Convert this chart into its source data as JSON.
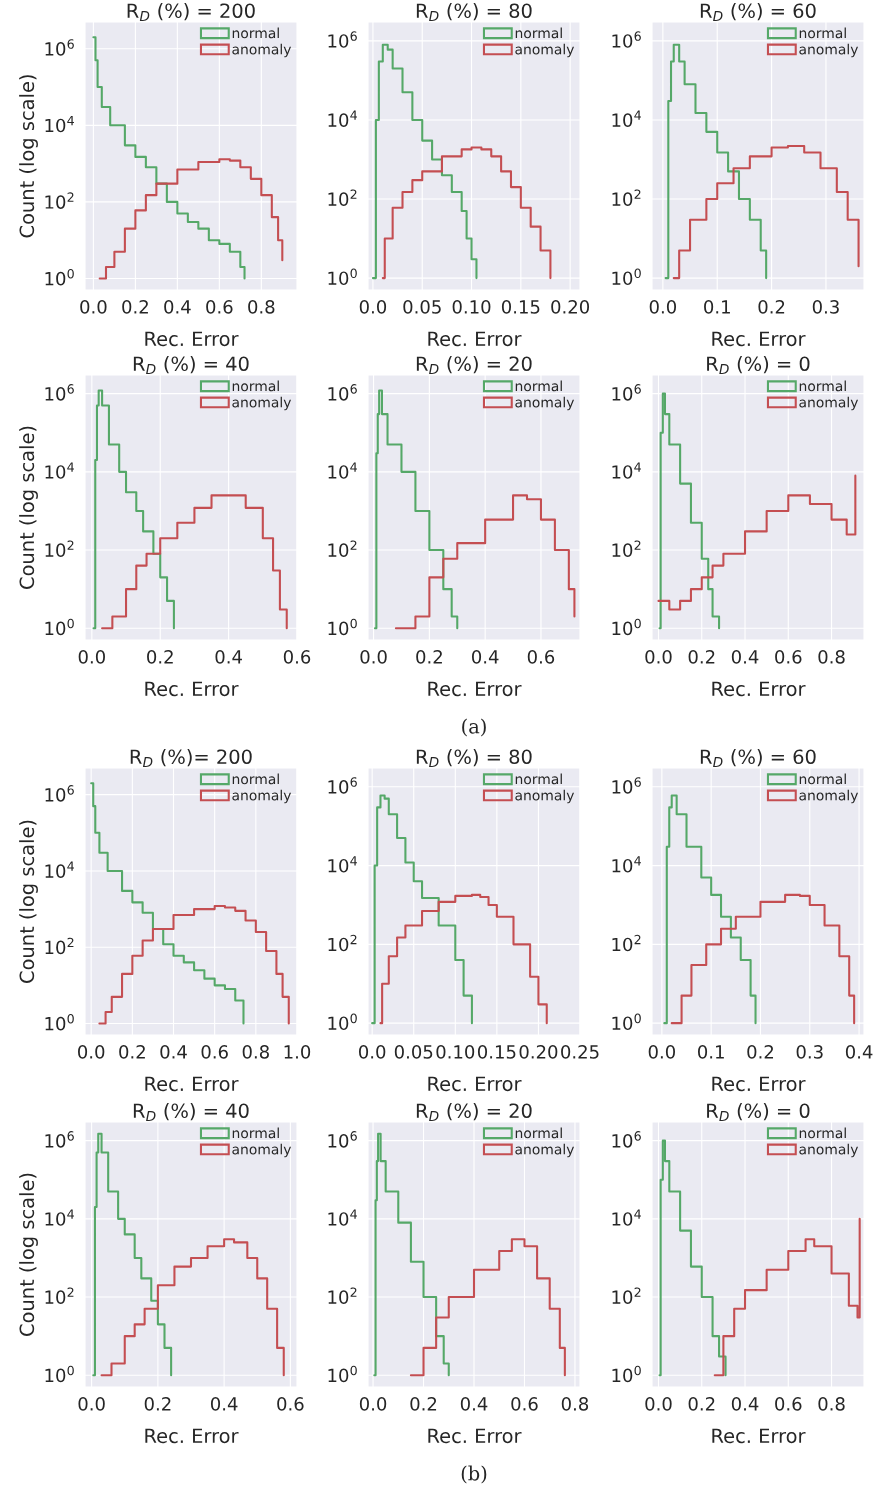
{
  "chart_data": [
    {
      "type": "step",
      "title": "R$_{D}$ (%) = 200",
      "xlabel": "Rec. Error",
      "ylabel": "Count (log scale)",
      "log": "y",
      "grid": true,
      "legend": "top right",
      "xlim": [
        -0.04,
        0.97
      ],
      "xticks": [
        {
          "value": 0,
          "label": "0.0"
        },
        {
          "value": 0.2,
          "label": "0.2"
        },
        {
          "value": 0.4,
          "label": "0.4"
        },
        {
          "value": 0.6,
          "label": "0.6"
        },
        {
          "value": 0.8,
          "label": "0.8"
        }
      ],
      "ylim": [
        0.5,
        5000000
      ],
      "yticks": [
        {
          "value": 1,
          "label": "10$^{0}$"
        },
        {
          "value": 100,
          "label": "10$^{2}$"
        },
        {
          "value": 10000,
          "label": "10$^{4}$"
        },
        {
          "value": 1000000,
          "label": "10$^{6}$"
        }
      ],
      "series": [
        {
          "name": "normal",
          "color": "#55a868",
          "x": [
            0.0,
            0.01,
            0.02,
            0.04,
            0.08,
            0.15,
            0.2,
            0.25,
            0.3,
            0.35,
            0.4,
            0.45,
            0.5,
            0.55,
            0.6,
            0.65,
            0.7,
            0.72
          ],
          "values": [
            2000000,
            500000,
            100000,
            30000,
            10000,
            3000,
            1500,
            800,
            300,
            100,
            50,
            30,
            20,
            10,
            8,
            5,
            2,
            1
          ]
        },
        {
          "name": "anomaly",
          "color": "#c44e52",
          "x": [
            0.03,
            0.06,
            0.1,
            0.15,
            0.2,
            0.25,
            0.3,
            0.4,
            0.5,
            0.6,
            0.65,
            0.7,
            0.75,
            0.8,
            0.85,
            0.88,
            0.9
          ],
          "values": [
            1,
            2,
            5,
            20,
            60,
            150,
            300,
            700,
            1100,
            1300,
            1200,
            800,
            400,
            150,
            40,
            10,
            3
          ]
        }
      ]
    },
    {
      "type": "step",
      "title": "R$_{D}$ (%) = 80",
      "xlabel": "Rec. Error",
      "log": "y",
      "grid": true,
      "legend": "top right",
      "xlim": [
        -0.005,
        0.21
      ],
      "xticks": [
        {
          "value": 0,
          "label": "0.0"
        },
        {
          "value": 0.05,
          "label": "0.05"
        },
        {
          "value": 0.1,
          "label": "0.10"
        },
        {
          "value": 0.15,
          "label": "0.15"
        },
        {
          "value": 0.2,
          "label": "0.20"
        }
      ],
      "ylim": [
        0.5,
        3000000
      ],
      "yticks": [
        {
          "value": 1,
          "label": "10$^{0}$"
        },
        {
          "value": 100,
          "label": "10$^{2}$"
        },
        {
          "value": 10000,
          "label": "10$^{4}$"
        },
        {
          "value": 1000000,
          "label": "10$^{6}$"
        }
      ],
      "series": [
        {
          "name": "normal",
          "color": "#55a868",
          "x": [
            0.0,
            0.003,
            0.006,
            0.01,
            0.015,
            0.02,
            0.03,
            0.04,
            0.05,
            0.06,
            0.07,
            0.08,
            0.09,
            0.095,
            0.1,
            0.105
          ],
          "values": [
            1,
            10000,
            300000,
            800000,
            600000,
            200000,
            50000,
            10000,
            3000,
            1000,
            400,
            150,
            50,
            10,
            3,
            1
          ]
        },
        {
          "name": "anomaly",
          "color": "#c44e52",
          "x": [
            0.01,
            0.012,
            0.02,
            0.03,
            0.04,
            0.05,
            0.07,
            0.09,
            0.1,
            0.11,
            0.12,
            0.13,
            0.14,
            0.15,
            0.16,
            0.17,
            0.18
          ],
          "values": [
            1,
            10,
            60,
            150,
            300,
            500,
            1200,
            1800,
            2000,
            1800,
            1200,
            500,
            200,
            60,
            20,
            5,
            1
          ]
        }
      ]
    },
    {
      "type": "step",
      "title": "R$_{D}$ (%) = 60",
      "xlabel": "Rec. Error",
      "log": "y",
      "grid": true,
      "legend": "top right",
      "xlim": [
        -0.02,
        0.37
      ],
      "xticks": [
        {
          "value": 0,
          "label": "0.0"
        },
        {
          "value": 0.1,
          "label": "0.1"
        },
        {
          "value": 0.2,
          "label": "0.2"
        },
        {
          "value": 0.3,
          "label": "0.3"
        }
      ],
      "ylim": [
        0.5,
        3000000
      ],
      "yticks": [
        {
          "value": 1,
          "label": "10$^{0}$"
        },
        {
          "value": 100,
          "label": "10$^{2}$"
        },
        {
          "value": 10000,
          "label": "10$^{4}$"
        },
        {
          "value": 1000000,
          "label": "10$^{6}$"
        }
      ],
      "series": [
        {
          "name": "normal",
          "color": "#55a868",
          "x": [
            0.005,
            0.01,
            0.015,
            0.02,
            0.03,
            0.04,
            0.06,
            0.08,
            0.1,
            0.12,
            0.14,
            0.16,
            0.18,
            0.19
          ],
          "values": [
            1,
            30000,
            300000,
            800000,
            300000,
            80000,
            15000,
            5000,
            1500,
            500,
            100,
            30,
            5,
            1
          ]
        },
        {
          "name": "anomaly",
          "color": "#c44e52",
          "x": [
            0.02,
            0.03,
            0.05,
            0.08,
            0.1,
            0.13,
            0.16,
            0.2,
            0.23,
            0.26,
            0.29,
            0.32,
            0.34,
            0.36
          ],
          "values": [
            1,
            5,
            30,
            100,
            250,
            600,
            1200,
            2000,
            2200,
            1500,
            600,
            150,
            30,
            2
          ]
        }
      ]
    },
    {
      "type": "step",
      "title": "R$_{D}$ (%) = 40",
      "xlabel": "Rec. Error",
      "ylabel": "Count (log scale)",
      "log": "y",
      "grid": true,
      "legend": "top right",
      "xlim": [
        -0.02,
        0.6
      ],
      "xticks": [
        {
          "value": 0,
          "label": "0.0"
        },
        {
          "value": 0.2,
          "label": "0.2"
        },
        {
          "value": 0.4,
          "label": "0.4"
        },
        {
          "value": 0.6,
          "label": "0.6"
        }
      ],
      "ylim": [
        0.5,
        3000000
      ],
      "yticks": [
        {
          "value": 1,
          "label": "10$^{0}$"
        },
        {
          "value": 100,
          "label": "10$^{2}$"
        },
        {
          "value": 10000,
          "label": "10$^{4}$"
        },
        {
          "value": 1000000,
          "label": "10$^{6}$"
        }
      ],
      "series": [
        {
          "name": "normal",
          "color": "#55a868",
          "x": [
            0.005,
            0.01,
            0.015,
            0.02,
            0.03,
            0.05,
            0.08,
            0.1,
            0.13,
            0.15,
            0.18,
            0.2,
            0.22,
            0.24
          ],
          "values": [
            1,
            20000,
            500000,
            1200000,
            500000,
            50000,
            10000,
            3000,
            1000,
            300,
            80,
            20,
            5,
            1
          ]
        },
        {
          "name": "anomaly",
          "color": "#c44e52",
          "x": [
            0.03,
            0.06,
            0.1,
            0.13,
            0.16,
            0.2,
            0.25,
            0.3,
            0.35,
            0.4,
            0.45,
            0.5,
            0.53,
            0.55,
            0.57
          ],
          "values": [
            1,
            2,
            10,
            40,
            80,
            200,
            500,
            1200,
            2500,
            2500,
            1200,
            200,
            30,
            3,
            1
          ]
        }
      ]
    },
    {
      "type": "step",
      "title": "R$_{D}$ (%) = 20",
      "xlabel": "Rec. Error",
      "log": "y",
      "grid": true,
      "legend": "top right",
      "annotations": [
        "(a)"
      ],
      "xlim": [
        -0.02,
        0.74
      ],
      "xticks": [
        {
          "value": 0,
          "label": "0.0"
        },
        {
          "value": 0.2,
          "label": "0.2"
        },
        {
          "value": 0.4,
          "label": "0.4"
        },
        {
          "value": 0.6,
          "label": "0.6"
        }
      ],
      "ylim": [
        0.5,
        3000000
      ],
      "yticks": [
        {
          "value": 1,
          "label": "10$^{0}$"
        },
        {
          "value": 100,
          "label": "10$^{2}$"
        },
        {
          "value": 10000,
          "label": "10$^{4}$"
        },
        {
          "value": 1000000,
          "label": "10$^{6}$"
        }
      ],
      "series": [
        {
          "name": "normal",
          "color": "#55a868",
          "x": [
            0.005,
            0.01,
            0.015,
            0.02,
            0.03,
            0.05,
            0.1,
            0.15,
            0.2,
            0.25,
            0.28,
            0.3
          ],
          "values": [
            1,
            30000,
            300000,
            1200000,
            300000,
            50000,
            10000,
            1000,
            100,
            10,
            2,
            1
          ]
        },
        {
          "name": "anomaly",
          "color": "#c44e52",
          "x": [
            0.08,
            0.15,
            0.2,
            0.25,
            0.3,
            0.4,
            0.5,
            0.55,
            0.6,
            0.65,
            0.7,
            0.72
          ],
          "values": [
            1,
            2,
            20,
            60,
            150,
            600,
            2500,
            2000,
            600,
            100,
            10,
            2
          ]
        }
      ]
    },
    {
      "type": "step",
      "title": "R$_{D}$ (%) = 0",
      "xlabel": "Rec. Error",
      "log": "y",
      "grid": true,
      "legend": "top right",
      "xlim": [
        -0.03,
        0.95
      ],
      "xticks": [
        {
          "value": 0,
          "label": "0.0"
        },
        {
          "value": 0.2,
          "label": "0.2"
        },
        {
          "value": 0.4,
          "label": "0.4"
        },
        {
          "value": 0.6,
          "label": "0.6"
        },
        {
          "value": 0.8,
          "label": "0.8"
        }
      ],
      "ylim": [
        0.5,
        3000000
      ],
      "yticks": [
        {
          "value": 1,
          "label": "10$^{0}$"
        },
        {
          "value": 100,
          "label": "10$^{2}$"
        },
        {
          "value": 10000,
          "label": "10$^{4}$"
        },
        {
          "value": 1000000,
          "label": "10$^{6}$"
        }
      ],
      "series": [
        {
          "name": "normal",
          "color": "#55a868",
          "x": [
            0.005,
            0.01,
            0.02,
            0.03,
            0.05,
            0.1,
            0.15,
            0.2,
            0.23,
            0.25,
            0.28
          ],
          "values": [
            1,
            100000,
            1000000,
            300000,
            50000,
            5000,
            500,
            60,
            10,
            2,
            1
          ]
        },
        {
          "name": "anomaly",
          "color": "#c44e52",
          "x": [
            0.0,
            0.05,
            0.1,
            0.15,
            0.2,
            0.25,
            0.3,
            0.4,
            0.5,
            0.6,
            0.65,
            0.7,
            0.8,
            0.87,
            0.91
          ],
          "values": [
            5,
            3,
            5,
            10,
            20,
            40,
            80,
            300,
            1000,
            2500,
            2500,
            1500,
            600,
            250,
            8000
          ]
        }
      ]
    },
    {
      "type": "step",
      "title": "R$_{D}$ (%)= 200",
      "xlabel": "Rec. Error",
      "ylabel": "Count (log scale)",
      "log": "y",
      "grid": true,
      "legend": "top right",
      "xlim": [
        -0.03,
        1.0
      ],
      "xticks": [
        {
          "value": 0,
          "label": "0.0"
        },
        {
          "value": 0.2,
          "label": "0.2"
        },
        {
          "value": 0.4,
          "label": "0.4"
        },
        {
          "value": 0.6,
          "label": "0.6"
        },
        {
          "value": 0.8,
          "label": "0.8"
        },
        {
          "value": 1.0,
          "label": "1.0"
        }
      ],
      "ylim": [
        0.5,
        5000000
      ],
      "yticks": [
        {
          "value": 1,
          "label": "10$^{0}$"
        },
        {
          "value": 100,
          "label": "10$^{2}$"
        },
        {
          "value": 10000,
          "label": "10$^{4}$"
        },
        {
          "value": 1000000,
          "label": "10$^{6}$"
        }
      ],
      "series": [
        {
          "name": "normal",
          "color": "#55a868",
          "x": [
            0.0,
            0.01,
            0.02,
            0.04,
            0.08,
            0.15,
            0.2,
            0.25,
            0.3,
            0.35,
            0.4,
            0.45,
            0.5,
            0.55,
            0.6,
            0.65,
            0.7,
            0.74
          ],
          "values": [
            2000000,
            500000,
            100000,
            30000,
            10000,
            3000,
            1500,
            800,
            300,
            120,
            60,
            40,
            25,
            15,
            10,
            8,
            4,
            1
          ]
        },
        {
          "name": "anomaly",
          "color": "#c44e52",
          "x": [
            0.04,
            0.07,
            0.1,
            0.15,
            0.2,
            0.25,
            0.3,
            0.4,
            0.5,
            0.6,
            0.65,
            0.7,
            0.75,
            0.8,
            0.85,
            0.9,
            0.93,
            0.96
          ],
          "values": [
            1,
            2,
            5,
            20,
            60,
            150,
            300,
            700,
            1000,
            1200,
            1100,
            900,
            500,
            250,
            80,
            20,
            5,
            1
          ]
        }
      ]
    },
    {
      "type": "step",
      "title": "R$_{D}$ (%) = 80",
      "xlabel": "Rec. Error",
      "log": "y",
      "grid": true,
      "legend": "top right",
      "xlim": [
        -0.005,
        0.25
      ],
      "xticks": [
        {
          "value": 0,
          "label": "0.0"
        },
        {
          "value": 0.05,
          "label": "0.05"
        },
        {
          "value": 0.1,
          "label": "0.10"
        },
        {
          "value": 0.15,
          "label": "0.15"
        },
        {
          "value": 0.2,
          "label": "0.20"
        },
        {
          "value": 0.25,
          "label": "0.25"
        }
      ],
      "ylim": [
        0.5,
        3000000
      ],
      "yticks": [
        {
          "value": 1,
          "label": "10$^{0}$"
        },
        {
          "value": 100,
          "label": "10$^{2}$"
        },
        {
          "value": 10000,
          "label": "10$^{4}$"
        },
        {
          "value": 1000000,
          "label": "10$^{6}$"
        }
      ],
      "series": [
        {
          "name": "normal",
          "color": "#55a868",
          "x": [
            0.0,
            0.003,
            0.006,
            0.01,
            0.015,
            0.02,
            0.03,
            0.04,
            0.05,
            0.06,
            0.08,
            0.1,
            0.11,
            0.12
          ],
          "values": [
            1,
            10000,
            300000,
            600000,
            500000,
            200000,
            50000,
            12000,
            4000,
            1500,
            300,
            40,
            5,
            1
          ]
        },
        {
          "name": "anomaly",
          "color": "#c44e52",
          "x": [
            0.01,
            0.012,
            0.02,
            0.03,
            0.04,
            0.06,
            0.08,
            0.1,
            0.12,
            0.13,
            0.14,
            0.15,
            0.17,
            0.19,
            0.2,
            0.21
          ],
          "values": [
            1,
            10,
            50,
            150,
            300,
            700,
            1200,
            1700,
            1800,
            1600,
            1000,
            500,
            100,
            15,
            3,
            1
          ]
        }
      ]
    },
    {
      "type": "step",
      "title": "R$_{D}$ (%) = 60",
      "xlabel": "Rec. Error",
      "log": "y",
      "grid": true,
      "legend": "top right",
      "xlim": [
        -0.02,
        0.41
      ],
      "xticks": [
        {
          "value": 0,
          "label": "0.0"
        },
        {
          "value": 0.1,
          "label": "0.1"
        },
        {
          "value": 0.2,
          "label": "0.2"
        },
        {
          "value": 0.3,
          "label": "0.3"
        },
        {
          "value": 0.4,
          "label": "0.4"
        }
      ],
      "ylim": [
        0.5,
        3000000
      ],
      "yticks": [
        {
          "value": 1,
          "label": "10$^{0}$"
        },
        {
          "value": 100,
          "label": "10$^{2}$"
        },
        {
          "value": 10000,
          "label": "10$^{4}$"
        },
        {
          "value": 1000000,
          "label": "10$^{6}$"
        }
      ],
      "series": [
        {
          "name": "normal",
          "color": "#55a868",
          "x": [
            0.005,
            0.01,
            0.015,
            0.02,
            0.03,
            0.05,
            0.08,
            0.1,
            0.12,
            0.14,
            0.16,
            0.18,
            0.19
          ],
          "values": [
            1,
            30000,
            300000,
            600000,
            200000,
            30000,
            5000,
            1800,
            500,
            150,
            40,
            5,
            1
          ]
        },
        {
          "name": "anomaly",
          "color": "#c44e52",
          "x": [
            0.02,
            0.04,
            0.06,
            0.09,
            0.12,
            0.15,
            0.2,
            0.25,
            0.28,
            0.3,
            0.33,
            0.36,
            0.38,
            0.39
          ],
          "values": [
            1,
            5,
            30,
            100,
            250,
            500,
            1200,
            1800,
            1700,
            1000,
            300,
            50,
            5,
            1
          ]
        }
      ]
    },
    {
      "type": "step",
      "title": "R$_{D}$ (%) = 40",
      "xlabel": "Rec. Error",
      "ylabel": "Count (log scale)",
      "log": "y",
      "grid": true,
      "legend": "top right",
      "xlim": [
        -0.02,
        0.62
      ],
      "xticks": [
        {
          "value": 0,
          "label": "0.0"
        },
        {
          "value": 0.2,
          "label": "0.2"
        },
        {
          "value": 0.4,
          "label": "0.4"
        },
        {
          "value": 0.6,
          "label": "0.6"
        }
      ],
      "ylim": [
        0.5,
        3000000
      ],
      "yticks": [
        {
          "value": 1,
          "label": "10$^{0}$"
        },
        {
          "value": 100,
          "label": "10$^{2}$"
        },
        {
          "value": 10000,
          "label": "10$^{4}$"
        },
        {
          "value": 1000000,
          "label": "10$^{6}$"
        }
      ],
      "series": [
        {
          "name": "normal",
          "color": "#55a868",
          "x": [
            0.005,
            0.01,
            0.015,
            0.02,
            0.03,
            0.05,
            0.08,
            0.1,
            0.13,
            0.15,
            0.18,
            0.2,
            0.22,
            0.24
          ],
          "values": [
            1,
            20000,
            500000,
            1500000,
            500000,
            50000,
            10000,
            4000,
            1000,
            300,
            80,
            20,
            5,
            1
          ]
        },
        {
          "name": "anomaly",
          "color": "#c44e52",
          "x": [
            0.03,
            0.06,
            0.1,
            0.13,
            0.16,
            0.2,
            0.25,
            0.3,
            0.35,
            0.4,
            0.43,
            0.47,
            0.5,
            0.53,
            0.56,
            0.58
          ],
          "values": [
            1,
            2,
            10,
            20,
            50,
            200,
            600,
            1000,
            2000,
            3000,
            2500,
            1000,
            300,
            50,
            5,
            1
          ]
        }
      ]
    },
    {
      "type": "step",
      "title": "R$_{D}$ (%) = 20",
      "xlabel": "Rec. Error",
      "log": "y",
      "grid": true,
      "legend": "top right",
      "annotations": [
        "(b)"
      ],
      "xlim": [
        -0.02,
        0.82
      ],
      "xticks": [
        {
          "value": 0,
          "label": "0.0"
        },
        {
          "value": 0.2,
          "label": "0.2"
        },
        {
          "value": 0.4,
          "label": "0.4"
        },
        {
          "value": 0.6,
          "label": "0.6"
        },
        {
          "value": 0.8,
          "label": "0.8"
        }
      ],
      "ylim": [
        0.5,
        3000000
      ],
      "yticks": [
        {
          "value": 1,
          "label": "10$^{0}$"
        },
        {
          "value": 100,
          "label": "10$^{2}$"
        },
        {
          "value": 10000,
          "label": "10$^{4}$"
        },
        {
          "value": 1000000,
          "label": "10$^{6}$"
        }
      ],
      "series": [
        {
          "name": "normal",
          "color": "#55a868",
          "x": [
            0.005,
            0.01,
            0.015,
            0.02,
            0.03,
            0.05,
            0.1,
            0.15,
            0.2,
            0.25,
            0.28,
            0.3
          ],
          "values": [
            1,
            30000,
            300000,
            1500000,
            300000,
            50000,
            8000,
            800,
            100,
            10,
            2,
            1
          ]
        },
        {
          "name": "anomaly",
          "color": "#c44e52",
          "x": [
            0.15,
            0.2,
            0.25,
            0.3,
            0.4,
            0.5,
            0.55,
            0.6,
            0.65,
            0.7,
            0.74,
            0.76
          ],
          "values": [
            1,
            5,
            30,
            100,
            500,
            1500,
            3000,
            2000,
            300,
            50,
            5,
            1
          ]
        }
      ]
    },
    {
      "type": "step",
      "title": "R$_{D}$ (%) = 0",
      "xlabel": "Rec. Error",
      "log": "y",
      "grid": true,
      "legend": "top right",
      "xlim": [
        -0.03,
        0.95
      ],
      "xticks": [
        {
          "value": 0,
          "label": "0.0"
        },
        {
          "value": 0.2,
          "label": "0.2"
        },
        {
          "value": 0.4,
          "label": "0.4"
        },
        {
          "value": 0.6,
          "label": "0.6"
        },
        {
          "value": 0.8,
          "label": "0.8"
        }
      ],
      "ylim": [
        0.5,
        3000000
      ],
      "yticks": [
        {
          "value": 1,
          "label": "10$^{0}$"
        },
        {
          "value": 100,
          "label": "10$^{2}$"
        },
        {
          "value": 10000,
          "label": "10$^{4}$"
        },
        {
          "value": 1000000,
          "label": "10$^{6}$"
        }
      ],
      "series": [
        {
          "name": "normal",
          "color": "#55a868",
          "x": [
            0.005,
            0.01,
            0.02,
            0.03,
            0.05,
            0.1,
            0.15,
            0.2,
            0.25,
            0.28,
            0.31
          ],
          "values": [
            1,
            100000,
            1000000,
            300000,
            50000,
            5000,
            600,
            100,
            10,
            3,
            1
          ]
        },
        {
          "name": "anomaly",
          "color": "#c44e52",
          "x": [
            0.26,
            0.3,
            0.35,
            0.4,
            0.5,
            0.6,
            0.68,
            0.72,
            0.8,
            0.88,
            0.92,
            0.93
          ],
          "values": [
            1,
            10,
            50,
            150,
            500,
            1500,
            3000,
            2000,
            400,
            60,
            30,
            10000
          ]
        }
      ]
    }
  ]
}
